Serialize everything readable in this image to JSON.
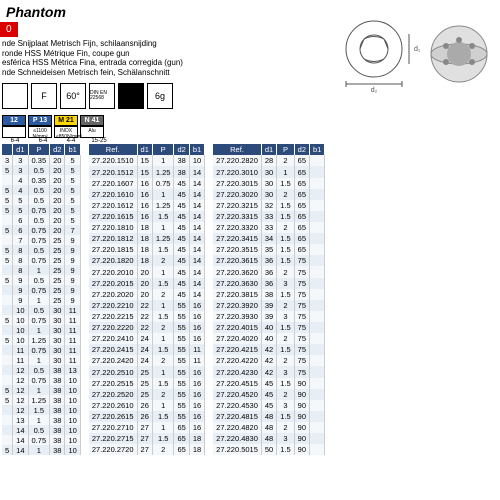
{
  "brand": "Phantom",
  "code": "0",
  "descriptions": [
    "nde Snijplaat Metrisch Fijn, schilaansnijding",
    "ronde HSS Métrique Fin, coupe gun",
    "esférica HSS Métrica Fina, entrada corregida (gun)",
    "nde Schneideisen Metrisch fein, Schälanschnitt"
  ],
  "spec_icons": [
    {
      "label": "",
      "class": ""
    },
    {
      "label": "F",
      "class": ""
    },
    {
      "label": "60°",
      "class": ""
    },
    {
      "label": "DIN EN 22568",
      "class": "",
      "small": true
    },
    {
      "label": "",
      "class": "black"
    },
    {
      "label": "6g",
      "class": ""
    }
  ],
  "material_specs": [
    {
      "code": "12",
      "class": "p",
      "sub": "",
      "sub2": "6-4"
    },
    {
      "code": "P 13",
      "class": "p",
      "sub": "≤1100 N/mm²",
      "sub2": "6-4"
    },
    {
      "code": "M 21",
      "class": "m",
      "sub": "INOX ≤850N/mm²",
      "sub2": "4-4"
    },
    {
      "code": "N 41",
      "class": "n",
      "sub": "Alu",
      "sub2": "15-25"
    }
  ],
  "table_headers": [
    "Ref.",
    "d1",
    "P",
    "d2",
    "b1"
  ],
  "table1_headers": [
    "",
    "d1",
    "P",
    "d2",
    "b1"
  ],
  "table1": [
    [
      "3",
      "3",
      "0.35",
      "20",
      "5"
    ],
    [
      "5",
      "3",
      "0.5",
      "20",
      "5"
    ],
    [
      "",
      "4",
      "0.35",
      "20",
      "5"
    ],
    [
      "5",
      "4",
      "0.5",
      "20",
      "5"
    ],
    [
      "5",
      "5",
      "0.5",
      "20",
      "5"
    ],
    [
      "5",
      "5",
      "0.75",
      "20",
      "5"
    ],
    [
      "",
      "6",
      "0.5",
      "20",
      "5"
    ],
    [
      "5",
      "6",
      "0.75",
      "20",
      "7"
    ],
    [
      "",
      "7",
      "0.75",
      "25",
      "9"
    ],
    [
      "5",
      "8",
      "0.5",
      "25",
      "9"
    ],
    [
      "5",
      "8",
      "0.75",
      "25",
      "9"
    ],
    [
      "",
      "8",
      "1",
      "25",
      "9"
    ],
    [
      "5",
      "9",
      "0.5",
      "25",
      "9"
    ],
    [
      "",
      "9",
      "0.75",
      "25",
      "9"
    ],
    [
      "",
      "9",
      "1",
      "25",
      "9"
    ],
    [
      "",
      "10",
      "0.5",
      "30",
      "11"
    ],
    [
      "5",
      "10",
      "0.75",
      "30",
      "11"
    ],
    [
      "",
      "10",
      "1",
      "30",
      "11"
    ],
    [
      "5",
      "10",
      "1.25",
      "30",
      "11"
    ],
    [
      "",
      "11",
      "0.75",
      "30",
      "11"
    ],
    [
      "",
      "11",
      "1",
      "30",
      "11"
    ],
    [
      "",
      "12",
      "0.5",
      "38",
      "13"
    ],
    [
      "",
      "12",
      "0.75",
      "38",
      "10"
    ],
    [
      "5",
      "12",
      "1",
      "38",
      "10"
    ],
    [
      "5",
      "12",
      "1.25",
      "38",
      "10"
    ],
    [
      "",
      "12",
      "1.5",
      "38",
      "10"
    ],
    [
      "",
      "13",
      "1",
      "38",
      "10"
    ],
    [
      "",
      "14",
      "0.5",
      "38",
      "10"
    ],
    [
      "",
      "14",
      "0.75",
      "38",
      "10"
    ],
    [
      "5",
      "14",
      "1",
      "38",
      "10"
    ]
  ],
  "table2": [
    [
      "27.220.1510",
      "15",
      "1",
      "38",
      "10"
    ],
    [
      "27.220.1512",
      "15",
      "1.25",
      "38",
      "14"
    ],
    [
      "27.220.1607",
      "16",
      "0.75",
      "45",
      "14"
    ],
    [
      "27.220.1610",
      "16",
      "1",
      "45",
      "14"
    ],
    [
      "27.220.1612",
      "16",
      "1.25",
      "45",
      "14"
    ],
    [
      "27.220.1615",
      "16",
      "1.5",
      "45",
      "14"
    ],
    [
      "27.220.1810",
      "18",
      "1",
      "45",
      "14"
    ],
    [
      "27.220.1812",
      "18",
      "1.25",
      "45",
      "14"
    ],
    [
      "27.220.1815",
      "18",
      "1.5",
      "45",
      "14"
    ],
    [
      "27.220.1820",
      "18",
      "2",
      "45",
      "14"
    ],
    [
      "27.220.2010",
      "20",
      "1",
      "45",
      "14"
    ],
    [
      "27.220.2015",
      "20",
      "1.5",
      "45",
      "14"
    ],
    [
      "27.220.2020",
      "20",
      "2",
      "45",
      "14"
    ],
    [
      "27.220.2210",
      "22",
      "1",
      "55",
      "16"
    ],
    [
      "27.220.2215",
      "22",
      "1.5",
      "55",
      "16"
    ],
    [
      "27.220.2220",
      "22",
      "2",
      "55",
      "16"
    ],
    [
      "27.220.2410",
      "24",
      "1",
      "55",
      "16"
    ],
    [
      "27.220.2415",
      "24",
      "1.5",
      "55",
      "11"
    ],
    [
      "27.220.2420",
      "24",
      "2",
      "55",
      "11"
    ],
    [
      "27.220.2510",
      "25",
      "1",
      "55",
      "16"
    ],
    [
      "27.220.2515",
      "25",
      "1.5",
      "55",
      "16"
    ],
    [
      "27.220.2520",
      "25",
      "2",
      "55",
      "16"
    ],
    [
      "27.220.2610",
      "26",
      "1",
      "55",
      "16"
    ],
    [
      "27.220.2615",
      "26",
      "1.5",
      "55",
      "16"
    ],
    [
      "27.220.2710",
      "27",
      "1",
      "65",
      "16"
    ],
    [
      "27.220.2715",
      "27",
      "1.5",
      "65",
      "18"
    ],
    [
      "27.220.2720",
      "27",
      "2",
      "65",
      "18"
    ]
  ],
  "table3": [
    [
      "27.220.2820",
      "28",
      "2",
      "65",
      ""
    ],
    [
      "27.220.3010",
      "30",
      "1",
      "65",
      ""
    ],
    [
      "27.220.3015",
      "30",
      "1.5",
      "65",
      ""
    ],
    [
      "27.220.3020",
      "30",
      "2",
      "65",
      ""
    ],
    [
      "27.220.3215",
      "32",
      "1.5",
      "65",
      ""
    ],
    [
      "27.220.3315",
      "33",
      "1.5",
      "65",
      ""
    ],
    [
      "27.220.3320",
      "33",
      "2",
      "65",
      ""
    ],
    [
      "27.220.3415",
      "34",
      "1.5",
      "65",
      ""
    ],
    [
      "27.220.3515",
      "35",
      "1.5",
      "65",
      ""
    ],
    [
      "27.220.3615",
      "36",
      "1.5",
      "75",
      ""
    ],
    [
      "27.220.3620",
      "36",
      "2",
      "75",
      ""
    ],
    [
      "27.220.3630",
      "36",
      "3",
      "75",
      ""
    ],
    [
      "27.220.3815",
      "38",
      "1.5",
      "75",
      ""
    ],
    [
      "27.220.3920",
      "39",
      "2",
      "75",
      ""
    ],
    [
      "27.220.3930",
      "39",
      "3",
      "75",
      ""
    ],
    [
      "27.220.4015",
      "40",
      "1.5",
      "75",
      ""
    ],
    [
      "27.220.4020",
      "40",
      "2",
      "75",
      ""
    ],
    [
      "27.220.4215",
      "42",
      "1.5",
      "75",
      ""
    ],
    [
      "27.220.4220",
      "42",
      "2",
      "75",
      ""
    ],
    [
      "27.220.4230",
      "42",
      "3",
      "75",
      ""
    ],
    [
      "27.220.4515",
      "45",
      "1.5",
      "90",
      ""
    ],
    [
      "27.220.4520",
      "45",
      "2",
      "90",
      ""
    ],
    [
      "27.220.4530",
      "45",
      "3",
      "90",
      ""
    ],
    [
      "27.220.4815",
      "48",
      "1.5",
      "90",
      ""
    ],
    [
      "27.220.4820",
      "48",
      "2",
      "90",
      ""
    ],
    [
      "27.220.4830",
      "48",
      "3",
      "90",
      ""
    ],
    [
      "27.220.5015",
      "50",
      "1.5",
      "90",
      ""
    ]
  ],
  "styling": {
    "header_bg": "#2c4a7a",
    "header_fg": "#ffffff",
    "row_even": "#e8eef5",
    "row_odd": "#f5f8fb",
    "red": "#d00",
    "font_size": 7.5
  }
}
